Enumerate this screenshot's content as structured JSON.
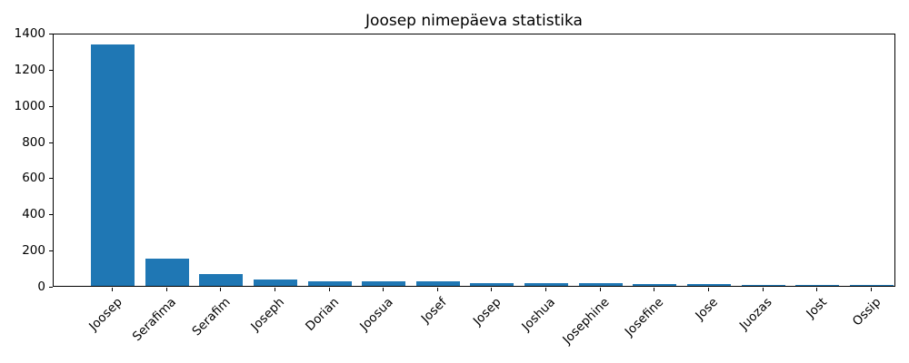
{
  "title": "Joosep nimepäeva statistika",
  "chart_data": {
    "type": "bar",
    "title": "Joosep nimepäeva statistika",
    "categories": [
      "Joosep",
      "Serafima",
      "Serafim",
      "Joseph",
      "Dorian",
      "Joosua",
      "Josef",
      "Josep",
      "Joshua",
      "Josephine",
      "Josefine",
      "Jose",
      "Juozas",
      "Jost",
      "Ossip"
    ],
    "values": [
      1335,
      150,
      65,
      35,
      25,
      25,
      25,
      15,
      15,
      15,
      12,
      12,
      5,
      6,
      5
    ],
    "xlabel": "",
    "ylabel": "",
    "ylim": [
      0,
      1400
    ],
    "yticks": [
      0,
      200,
      400,
      600,
      800,
      1000,
      1200,
      1400
    ],
    "xtick_rotation_deg": 45,
    "grid": false,
    "legend_position": "none",
    "bar_color": "#1f77b4",
    "background_color": "#ffffff",
    "text_color": "#000000"
  }
}
